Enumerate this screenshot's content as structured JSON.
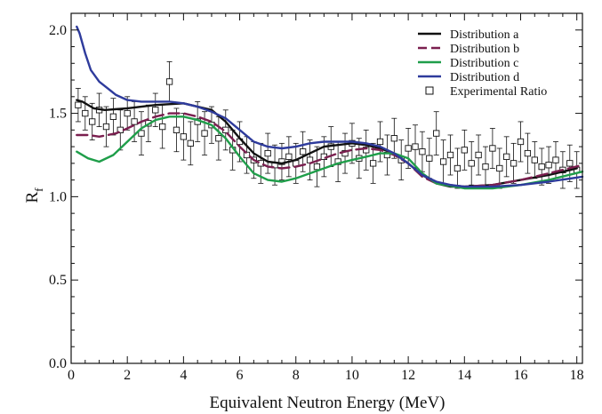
{
  "chart_data": {
    "type": "line",
    "xlabel": "Equivalent Neutron Energy (MeV)",
    "ylabel": {
      "main": "R",
      "sub": "f"
    },
    "xlim": [
      0,
      18.2
    ],
    "ylim": [
      0,
      2.1
    ],
    "x_ticks": [
      0,
      2,
      4,
      6,
      8,
      10,
      12,
      14,
      16,
      18
    ],
    "y_ticks": [
      0.0,
      0.5,
      1.0,
      1.5,
      2.0
    ],
    "x_tick_labels": [
      "0",
      "2",
      "4",
      "6",
      "8",
      "10",
      "12",
      "14",
      "16",
      "18"
    ],
    "y_tick_labels": [
      "0.0",
      "0.5",
      "1.0",
      "1.5",
      "2.0"
    ],
    "legend_position": "top-right",
    "grid": false,
    "series": [
      {
        "name": "Distribution a",
        "color": "#111111",
        "dash": "solid",
        "x": [
          0.2,
          0.4,
          0.8,
          1.2,
          2.0,
          3.0,
          4.0,
          5.0,
          5.5,
          6.0,
          6.5,
          7.0,
          7.5,
          8.0,
          8.5,
          9.0,
          9.5,
          10.0,
          10.5,
          11.0,
          11.5,
          12.0,
          12.5,
          13.0,
          13.5,
          14.0,
          15.0,
          16.0,
          17.0,
          18.0
        ],
        "y": [
          1.58,
          1.57,
          1.53,
          1.52,
          1.53,
          1.55,
          1.56,
          1.52,
          1.45,
          1.35,
          1.26,
          1.21,
          1.2,
          1.22,
          1.26,
          1.3,
          1.31,
          1.32,
          1.31,
          1.29,
          1.26,
          1.2,
          1.13,
          1.08,
          1.06,
          1.06,
          1.07,
          1.1,
          1.13,
          1.17
        ]
      },
      {
        "name": "Distribution b",
        "color": "#7a1f4f",
        "dash": "dashed",
        "x": [
          0.2,
          0.6,
          1.0,
          1.6,
          2.0,
          2.5,
          3.0,
          3.5,
          4.0,
          4.5,
          5.0,
          5.5,
          6.0,
          6.5,
          7.0,
          7.5,
          8.0,
          8.5,
          9.0,
          9.5,
          10.0,
          10.5,
          11.0,
          11.5,
          12.0,
          12.5,
          13.0,
          14.0,
          15.0,
          16.0,
          17.0,
          18.2
        ],
        "y": [
          1.37,
          1.37,
          1.36,
          1.38,
          1.41,
          1.45,
          1.48,
          1.5,
          1.5,
          1.48,
          1.45,
          1.39,
          1.3,
          1.22,
          1.18,
          1.17,
          1.18,
          1.2,
          1.23,
          1.26,
          1.28,
          1.29,
          1.28,
          1.25,
          1.2,
          1.12,
          1.08,
          1.06,
          1.07,
          1.1,
          1.14,
          1.19
        ]
      },
      {
        "name": "Distribution c",
        "color": "#1f9e4a",
        "dash": "solid",
        "x": [
          0.2,
          0.6,
          1.0,
          1.5,
          2.0,
          2.5,
          3.0,
          3.5,
          4.0,
          4.5,
          5.0,
          5.5,
          6.0,
          6.5,
          7.0,
          7.5,
          8.0,
          8.5,
          9.0,
          9.5,
          10.0,
          10.5,
          11.0,
          11.5,
          12.0,
          12.5,
          13.0,
          14.0,
          15.0,
          16.0,
          17.0,
          18.2
        ],
        "y": [
          1.27,
          1.23,
          1.21,
          1.25,
          1.33,
          1.41,
          1.46,
          1.48,
          1.48,
          1.46,
          1.43,
          1.35,
          1.24,
          1.14,
          1.1,
          1.09,
          1.11,
          1.14,
          1.17,
          1.2,
          1.22,
          1.24,
          1.26,
          1.26,
          1.23,
          1.14,
          1.08,
          1.05,
          1.05,
          1.07,
          1.1,
          1.15
        ]
      },
      {
        "name": "Distribution d",
        "color": "#2e3b9c",
        "dash": "solid",
        "x": [
          0.2,
          0.3,
          0.5,
          0.7,
          1.0,
          1.3,
          1.6,
          2.0,
          2.5,
          3.0,
          3.5,
          4.0,
          4.5,
          5.0,
          5.5,
          6.0,
          6.5,
          7.0,
          7.5,
          8.0,
          8.5,
          9.0,
          9.5,
          10.0,
          10.5,
          11.0,
          11.5,
          12.0,
          12.5,
          13.0,
          13.5,
          14.0,
          15.0,
          16.0,
          17.0,
          18.2
        ],
        "y": [
          2.02,
          1.98,
          1.86,
          1.76,
          1.69,
          1.65,
          1.61,
          1.58,
          1.57,
          1.57,
          1.57,
          1.56,
          1.54,
          1.51,
          1.47,
          1.4,
          1.33,
          1.3,
          1.29,
          1.3,
          1.32,
          1.33,
          1.33,
          1.33,
          1.32,
          1.3,
          1.26,
          1.2,
          1.13,
          1.09,
          1.07,
          1.06,
          1.06,
          1.07,
          1.09,
          1.12
        ]
      },
      {
        "name": "Experimental Ratio",
        "color": "#111111",
        "marker": "open-square",
        "error_bars": true,
        "x": [
          0.25,
          0.5,
          0.75,
          1.0,
          1.25,
          1.5,
          1.75,
          2.0,
          2.25,
          2.5,
          2.75,
          3.0,
          3.25,
          3.5,
          3.75,
          4.0,
          4.25,
          4.5,
          4.75,
          5.0,
          5.25,
          5.5,
          5.75,
          6.0,
          6.25,
          6.5,
          6.75,
          7.0,
          7.25,
          7.5,
          7.75,
          8.0,
          8.25,
          8.5,
          8.75,
          9.0,
          9.25,
          9.5,
          9.75,
          10.0,
          10.25,
          10.5,
          10.75,
          11.0,
          11.25,
          11.5,
          11.75,
          12.0,
          12.25,
          12.5,
          12.75,
          13.0,
          13.25,
          13.5,
          13.75,
          14.0,
          14.25,
          14.5,
          14.75,
          15.0,
          15.25,
          15.5,
          15.75,
          16.0,
          16.25,
          16.5,
          16.75,
          17.0,
          17.25,
          17.5,
          17.75,
          18.0
        ],
        "y": [
          1.55,
          1.5,
          1.45,
          1.52,
          1.42,
          1.48,
          1.4,
          1.5,
          1.45,
          1.38,
          1.44,
          1.52,
          1.42,
          1.69,
          1.4,
          1.36,
          1.32,
          1.45,
          1.38,
          1.43,
          1.35,
          1.4,
          1.28,
          1.33,
          1.25,
          1.22,
          1.2,
          1.26,
          1.19,
          1.21,
          1.24,
          1.2,
          1.27,
          1.22,
          1.18,
          1.24,
          1.3,
          1.21,
          1.26,
          1.32,
          1.23,
          1.28,
          1.2,
          1.33,
          1.25,
          1.35,
          1.22,
          1.29,
          1.3,
          1.27,
          1.23,
          1.38,
          1.21,
          1.25,
          1.17,
          1.28,
          1.2,
          1.25,
          1.18,
          1.29,
          1.17,
          1.24,
          1.2,
          1.33,
          1.26,
          1.22,
          1.18,
          1.19,
          1.22,
          1.16,
          1.2,
          1.16
        ],
        "yerr": [
          0.1,
          0.1,
          0.11,
          0.1,
          0.12,
          0.11,
          0.12,
          0.1,
          0.12,
          0.13,
          0.11,
          0.1,
          0.13,
          0.12,
          0.13,
          0.14,
          0.13,
          0.12,
          0.13,
          0.11,
          0.13,
          0.12,
          0.12,
          0.12,
          0.11,
          0.11,
          0.12,
          0.12,
          0.12,
          0.11,
          0.12,
          0.12,
          0.12,
          0.12,
          0.12,
          0.12,
          0.12,
          0.12,
          0.12,
          0.12,
          0.12,
          0.12,
          0.12,
          0.12,
          0.12,
          0.12,
          0.12,
          0.12,
          0.13,
          0.12,
          0.12,
          0.13,
          0.13,
          0.12,
          0.12,
          0.12,
          0.13,
          0.12,
          0.12,
          0.12,
          0.12,
          0.12,
          0.12,
          0.12,
          0.12,
          0.11,
          0.11,
          0.11,
          0.11,
          0.11,
          0.11,
          0.11
        ]
      }
    ]
  }
}
